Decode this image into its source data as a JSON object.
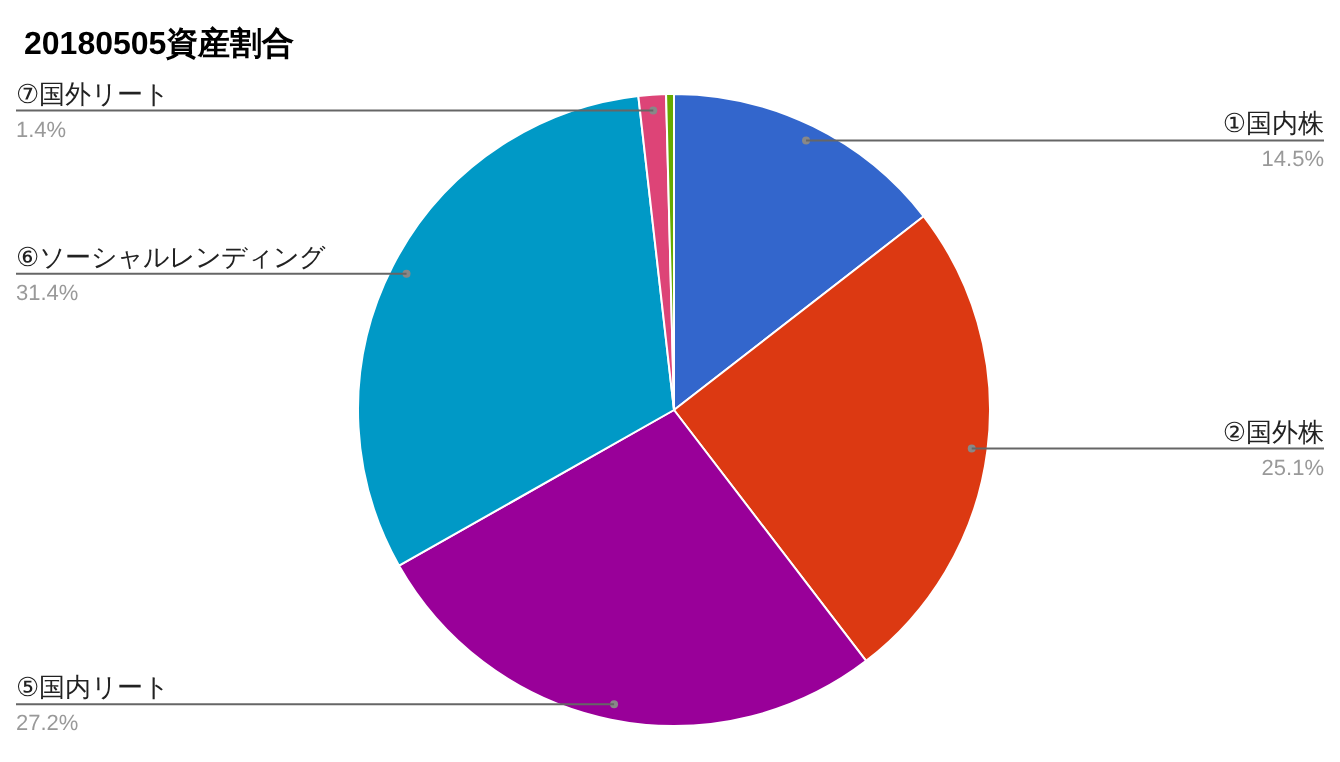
{
  "chart_data": {
    "type": "pie",
    "title": "20180505資産割合",
    "categories": [
      "①国内株",
      "②国外株",
      "⑤国内リート",
      "⑥ソーシャルレンディング",
      "⑦国外リート",
      null
    ],
    "values": [
      14.5,
      25.1,
      27.2,
      31.4,
      1.4,
      0.4
    ],
    "colors": [
      "#3366cc",
      "#dc3912",
      "#990099",
      "#0099c6",
      "#dd4477",
      "#66aa00"
    ],
    "value_labels": [
      "14.5%",
      "25.1%",
      "27.2%",
      "31.4%",
      "1.4%",
      null
    ]
  }
}
